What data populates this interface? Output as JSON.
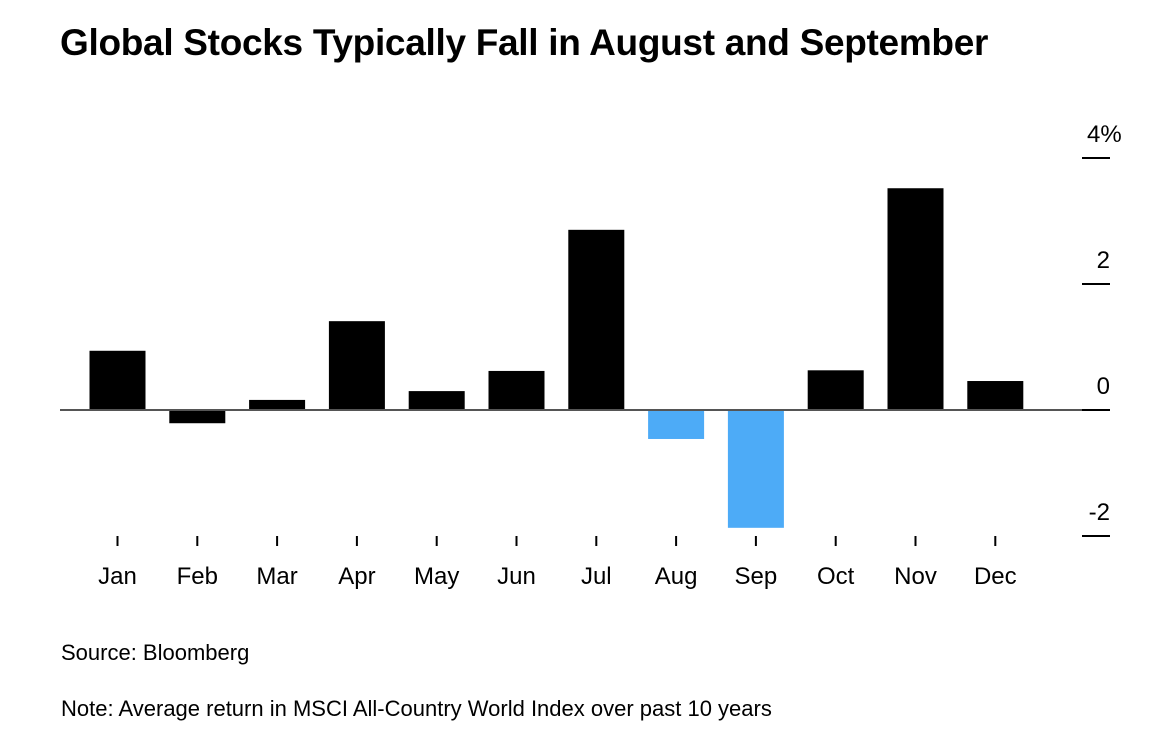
{
  "chart_data": {
    "type": "bar",
    "title": "Global Stocks Typically Fall in August and September",
    "xlabel": "",
    "ylabel": "",
    "categories": [
      "Jan",
      "Feb",
      "Mar",
      "Apr",
      "May",
      "Jun",
      "Jul",
      "Aug",
      "Sep",
      "Oct",
      "Nov",
      "Dec"
    ],
    "values": [
      0.94,
      -0.21,
      0.16,
      1.41,
      0.3,
      0.62,
      2.86,
      -0.46,
      -1.87,
      0.63,
      3.52,
      0.46
    ],
    "highlighted": [
      "Aug",
      "Sep"
    ],
    "ylim": [
      -2,
      4
    ],
    "y_ticks": [
      4,
      2,
      0,
      -2
    ],
    "y_tick_labels": [
      "4%",
      "2",
      "0",
      "-2"
    ],
    "y_axis_position": "right",
    "grid": false,
    "legend": null,
    "colors": {
      "default": "#000000",
      "highlight": "#4dabf7",
      "axis": "#555555"
    }
  },
  "footer": {
    "source": "Source: Bloomberg",
    "note": "Note: Average return in MSCI All-Country World Index over past 10 years"
  }
}
